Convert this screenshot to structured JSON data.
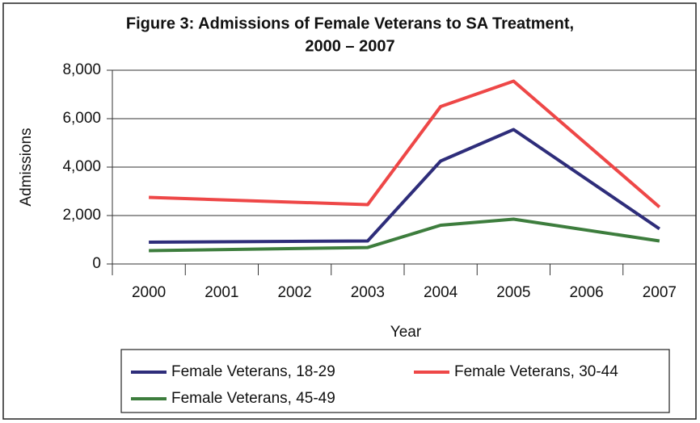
{
  "chart_data": {
    "type": "line",
    "title": [
      "Figure 3: Admissions of Female Veterans to SA Treatment,",
      "2000 – 2007"
    ],
    "x_label": "Year",
    "y_label": "Admissions",
    "x": [
      2000,
      2003,
      2004,
      2005,
      2007
    ],
    "xlim": [
      1999.5,
      2007.5
    ],
    "xticks": [
      2000,
      2001,
      2002,
      2003,
      2004,
      2005,
      2006,
      2007
    ],
    "ylim": [
      0,
      8000
    ],
    "yticks": [
      0,
      {
        "value": 2000,
        "label": "2,000"
      },
      {
        "value": 4000,
        "label": "4,000"
      },
      {
        "value": 6000,
        "label": "6,000"
      },
      {
        "value": 8000,
        "label": "8,000"
      }
    ],
    "grid": true,
    "series": [
      {
        "name": "Female Veterans, 18-29",
        "color": "#2e2d7a",
        "values": [
          900,
          950,
          4250,
          5550,
          1450
        ]
      },
      {
        "name": "Female Veterans, 30-44",
        "color": "#ee4747",
        "values": [
          2750,
          2450,
          6500,
          7550,
          2350
        ]
      },
      {
        "name": "Female Veterans, 45-49",
        "color": "#3d7d3d",
        "values": [
          550,
          680,
          1600,
          1850,
          950
        ]
      }
    ]
  }
}
